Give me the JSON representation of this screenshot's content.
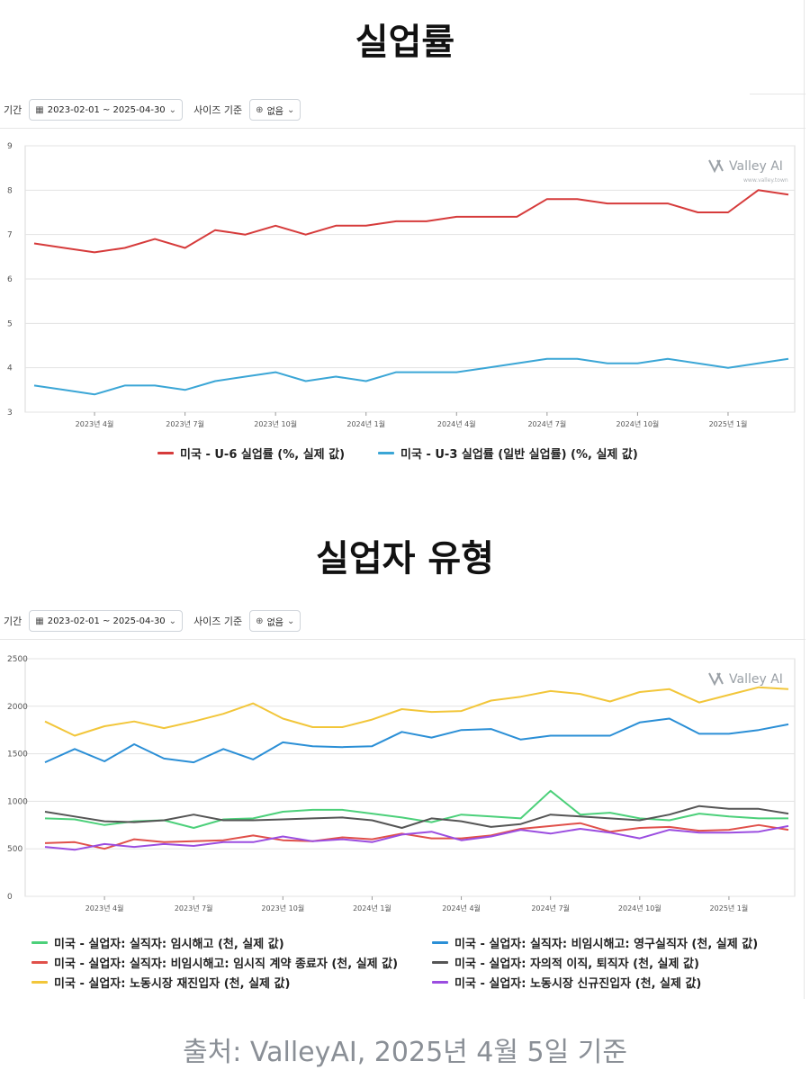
{
  "chart1": {
    "title": "실업률",
    "toolbar": {
      "period_label": "기간",
      "period_value": "2023-02-01 ~ 2025-04-30",
      "size_label": "사이즈 기준",
      "size_value": "없음"
    },
    "watermark": {
      "brand": "Valley AI",
      "url": "www.valley.town"
    },
    "chart_data": {
      "type": "line",
      "x": [
        "2023-02",
        "2023-03",
        "2023-04",
        "2023-05",
        "2023-06",
        "2023-07",
        "2023-08",
        "2023-09",
        "2023-10",
        "2023-11",
        "2023-12",
        "2024-01",
        "2024-02",
        "2024-03",
        "2024-04",
        "2024-05",
        "2024-06",
        "2024-07",
        "2024-08",
        "2024-09",
        "2024-10",
        "2024-11",
        "2024-12",
        "2025-01",
        "2025-02",
        "2025-03"
      ],
      "x_ticks": [
        {
          "i": 2,
          "label": "2023년 4월"
        },
        {
          "i": 5,
          "label": "2023년 7월"
        },
        {
          "i": 8,
          "label": "2023년 10월"
        },
        {
          "i": 11,
          "label": "2024년 1월"
        },
        {
          "i": 14,
          "label": "2024년 4월"
        },
        {
          "i": 17,
          "label": "2024년 7월"
        },
        {
          "i": 20,
          "label": "2024년 10월"
        },
        {
          "i": 23,
          "label": "2025년 1월"
        }
      ],
      "ylim": [
        3,
        9
      ],
      "yticks": [
        3,
        4,
        5,
        6,
        7,
        8,
        9
      ],
      "series": [
        {
          "name": "미국 - U-6 실업률 (%, 실제 값)",
          "color": "#d63b3b",
          "values": [
            6.8,
            6.7,
            6.6,
            6.7,
            6.9,
            6.7,
            7.1,
            7.0,
            7.2,
            7.0,
            7.2,
            7.2,
            7.3,
            7.3,
            7.4,
            7.4,
            7.4,
            7.8,
            7.8,
            7.7,
            7.7,
            7.7,
            7.5,
            7.5,
            8.0,
            7.9
          ]
        },
        {
          "name": "미국 - U-3 실업률 (일반 실업률) (%, 실제 값)",
          "color": "#3ba6d6",
          "values": [
            3.6,
            3.5,
            3.4,
            3.6,
            3.6,
            3.5,
            3.7,
            3.8,
            3.9,
            3.7,
            3.8,
            3.7,
            3.9,
            3.9,
            3.9,
            4.0,
            4.1,
            4.2,
            4.2,
            4.1,
            4.1,
            4.2,
            4.1,
            4.0,
            4.1,
            4.2
          ]
        }
      ]
    }
  },
  "chart2": {
    "title": "실업자 유형",
    "toolbar": {
      "period_label": "기간",
      "period_value": "2023-02-01 ~ 2025-04-30",
      "size_label": "사이즈 기준",
      "size_value": "없음"
    },
    "watermark": {
      "brand": "Valley AI"
    },
    "chart_data": {
      "type": "line",
      "x": [
        "2023-02",
        "2023-03",
        "2023-04",
        "2023-05",
        "2023-06",
        "2023-07",
        "2023-08",
        "2023-09",
        "2023-10",
        "2023-11",
        "2023-12",
        "2024-01",
        "2024-02",
        "2024-03",
        "2024-04",
        "2024-05",
        "2024-06",
        "2024-07",
        "2024-08",
        "2024-09",
        "2024-10",
        "2024-11",
        "2024-12",
        "2025-01",
        "2025-02",
        "2025-03"
      ],
      "x_ticks": [
        {
          "i": 2,
          "label": "2023년 4월"
        },
        {
          "i": 5,
          "label": "2023년 7월"
        },
        {
          "i": 8,
          "label": "2023년 10월"
        },
        {
          "i": 11,
          "label": "2024년 1월"
        },
        {
          "i": 14,
          "label": "2024년 4월"
        },
        {
          "i": 17,
          "label": "2024년 7월"
        },
        {
          "i": 20,
          "label": "2024년 10월"
        },
        {
          "i": 23,
          "label": "2025년 1월"
        }
      ],
      "ylim": [
        0,
        2500
      ],
      "yticks": [
        0,
        500,
        1000,
        1500,
        2000,
        2500
      ],
      "series": [
        {
          "name": "미국 - 실업자: 실직자: 임시해고 (천, 실제 값)",
          "color": "#4cd07a",
          "values": [
            820,
            810,
            750,
            790,
            800,
            720,
            810,
            820,
            890,
            910,
            910,
            870,
            830,
            780,
            860,
            840,
            820,
            1110,
            860,
            880,
            820,
            800,
            870,
            840,
            820,
            820
          ]
        },
        {
          "name": "미국 - 실업자: 실직자: 비임시해고: 영구실직자 (천, 실제 값)",
          "color": "#2b8fd6",
          "values": [
            1410,
            1550,
            1420,
            1600,
            1450,
            1410,
            1550,
            1440,
            1620,
            1580,
            1570,
            1580,
            1730,
            1670,
            1750,
            1760,
            1650,
            1690,
            1690,
            1690,
            1830,
            1870,
            1710,
            1710,
            1750,
            1810
          ]
        },
        {
          "name": "미국 - 실업자: 실직자: 비임시해고: 임시직 계약 종료자 (천, 실제 값)",
          "color": "#e0504a",
          "values": [
            560,
            570,
            500,
            600,
            570,
            580,
            590,
            640,
            590,
            580,
            620,
            600,
            660,
            610,
            610,
            640,
            710,
            740,
            770,
            680,
            720,
            730,
            690,
            700,
            750,
            700
          ]
        },
        {
          "name": "미국 - 실업자: 자의적 이직, 퇴직자 (천, 실제 값)",
          "color": "#555555",
          "values": [
            890,
            840,
            790,
            780,
            800,
            860,
            800,
            800,
            810,
            820,
            830,
            800,
            720,
            820,
            790,
            730,
            760,
            860,
            840,
            820,
            800,
            860,
            950,
            920,
            920,
            870
          ]
        },
        {
          "name": "미국 - 실업자: 노동시장 재진입자 (천, 실제 값)",
          "color": "#f2c63a",
          "values": [
            1840,
            1690,
            1790,
            1840,
            1770,
            1840,
            1920,
            2030,
            1870,
            1780,
            1780,
            1860,
            1970,
            1940,
            1950,
            2060,
            2100,
            2160,
            2130,
            2050,
            2150,
            2180,
            2040,
            2120,
            2200,
            2180
          ]
        },
        {
          "name": "미국 - 실업자: 노동시장 신규진입자 (천, 실제 값)",
          "color": "#9b4de0",
          "values": [
            520,
            490,
            550,
            520,
            550,
            530,
            570,
            570,
            630,
            580,
            600,
            570,
            650,
            680,
            590,
            630,
            700,
            660,
            710,
            670,
            610,
            700,
            670,
            670,
            680,
            740
          ]
        }
      ]
    }
  },
  "source": "출처: ValleyAI, 2025년 4월 5일 기준"
}
